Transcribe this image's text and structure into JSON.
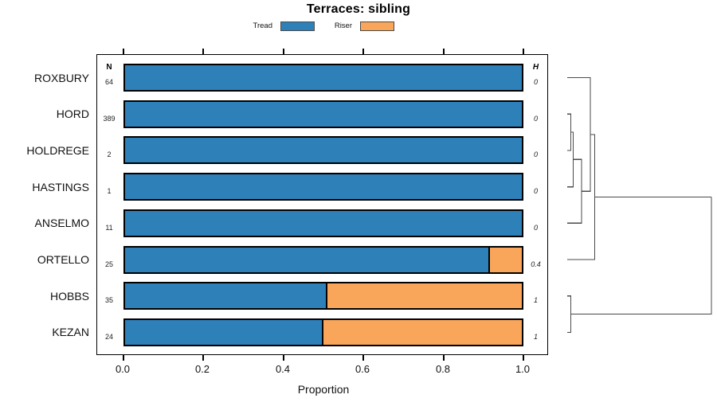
{
  "title": "Terraces: sibling",
  "legend": {
    "items": [
      {
        "label": "Tread",
        "color": "#2E80B9"
      },
      {
        "label": "Riser",
        "color": "#F9A65A"
      }
    ]
  },
  "columns": {
    "n_header": "N",
    "h_header": "H"
  },
  "axis": {
    "ticks": [
      "0.0",
      "0.2",
      "0.4",
      "0.6",
      "0.8",
      "1.0"
    ],
    "label": "Proportion"
  },
  "rows": [
    {
      "label": "ROXBURY",
      "n": "64",
      "h": "0",
      "tread": 1.0,
      "riser": 0.0
    },
    {
      "label": "HORD",
      "n": "389",
      "h": "0",
      "tread": 1.0,
      "riser": 0.0
    },
    {
      "label": "HOLDREGE",
      "n": "2",
      "h": "0",
      "tread": 1.0,
      "riser": 0.0
    },
    {
      "label": "HASTINGS",
      "n": "1",
      "h": "0",
      "tread": 1.0,
      "riser": 0.0
    },
    {
      "label": "ANSELMO",
      "n": "11",
      "h": "0",
      "tread": 1.0,
      "riser": 0.0
    },
    {
      "label": "ORTELLO",
      "n": "25",
      "h": "0.4",
      "tread": 0.92,
      "riser": 0.08
    },
    {
      "label": "HOBBS",
      "n": "35",
      "h": "1",
      "tread": 0.51,
      "riser": 0.49
    },
    {
      "label": "KEZAN",
      "n": "24",
      "h": "1",
      "tread": 0.5,
      "riser": 0.5
    }
  ],
  "chart_data": {
    "type": "bar",
    "orientation": "horizontal-stacked",
    "title": "Terraces: sibling",
    "categories": [
      "ROXBURY",
      "HORD",
      "HOLDREGE",
      "HASTINGS",
      "ANSELMO",
      "ORTELLO",
      "HOBBS",
      "KEZAN"
    ],
    "series": [
      {
        "name": "Tread",
        "color": "#2E80B9",
        "values": [
          1.0,
          1.0,
          1.0,
          1.0,
          1.0,
          0.92,
          0.51,
          0.5
        ]
      },
      {
        "name": "Riser",
        "color": "#F9A65A",
        "values": [
          0.0,
          0.0,
          0.0,
          0.0,
          0.0,
          0.08,
          0.49,
          0.5
        ]
      }
    ],
    "counts_N": [
      64,
      389,
      2,
      1,
      11,
      25,
      35,
      24
    ],
    "heterogeneity_H": [
      0,
      0,
      0,
      0,
      0,
      0.4,
      1,
      1
    ],
    "xlabel": "Proportion",
    "xlim": [
      0,
      1
    ],
    "x_ticks": [
      0.0,
      0.2,
      0.4,
      0.6,
      0.8,
      1.0
    ],
    "legend_position": "top",
    "grid": false,
    "right_annotation": "row dendrogram: ((((HORD,HOLDREGE),HASTINGS),ANSELMO) with ROXBURY, then ORTELLO; (HOBBS,KEZAN); root joins both at far right"
  }
}
